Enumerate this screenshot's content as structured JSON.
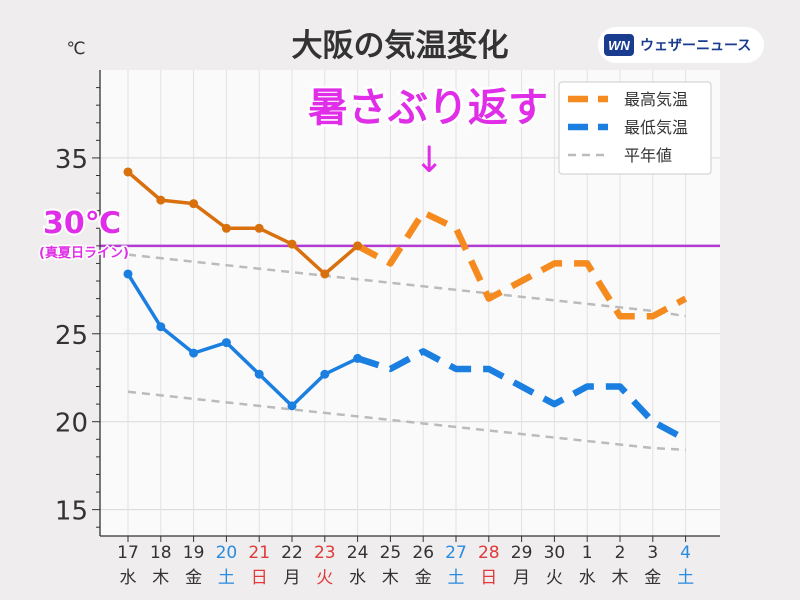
{
  "brand": {
    "mark": "WN",
    "name": "ウェザーニュース",
    "icon": "weathernews-logo"
  },
  "chart_data": {
    "type": "line",
    "title": "大阪の気温変化",
    "unit_label": "℃",
    "ylim": [
      13.5,
      40
    ],
    "yticks": [
      15,
      20,
      25,
      30,
      35
    ],
    "ytick_labels": [
      "15",
      "20",
      "25",
      "",
      "35"
    ],
    "grid": true,
    "legend_position": "top-right",
    "x_days": [
      "17",
      "18",
      "19",
      "20",
      "21",
      "22",
      "23",
      "24",
      "25",
      "26",
      "27",
      "28",
      "29",
      "30",
      "1",
      "2",
      "3",
      "4"
    ],
    "x_weekdays": [
      "水",
      "木",
      "金",
      "土",
      "日",
      "月",
      "火",
      "水",
      "木",
      "金",
      "土",
      "日",
      "月",
      "火",
      "水",
      "木",
      "金",
      "土"
    ],
    "x_day_types": [
      "weekday",
      "weekday",
      "weekday",
      "sat",
      "sun",
      "weekday",
      "holiday",
      "weekday",
      "weekday",
      "weekday",
      "sat",
      "sun",
      "weekday",
      "weekday",
      "weekday",
      "weekday",
      "weekday",
      "sat"
    ],
    "observed_count": 8,
    "series": [
      {
        "name": "最高気温",
        "color": "#f58a1f",
        "observed_color": "#d9700e",
        "values": [
          34.2,
          32.6,
          32.4,
          31.0,
          31.0,
          30.1,
          28.4,
          30.0,
          29.0,
          31.9,
          31.0,
          27.0,
          28.0,
          29.0,
          29.0,
          26.0,
          26.0,
          27.0
        ]
      },
      {
        "name": "最低気温",
        "color": "#1a7fe0",
        "observed_color": "#1a7fe0",
        "values": [
          28.4,
          25.4,
          23.9,
          24.5,
          22.7,
          20.9,
          22.7,
          23.6,
          23.0,
          24.0,
          23.0,
          23.0,
          22.0,
          21.0,
          22.0,
          22.0,
          20.0,
          19.0
        ]
      },
      {
        "name": "平年値",
        "color": "#bbbbbb",
        "segments": [
          {
            "values": [
              29.5,
              29.3,
              29.1,
              28.9,
              28.7,
              28.5,
              28.3,
              28.1,
              27.9,
              27.7,
              27.5,
              27.3,
              27.1,
              26.9,
              26.7,
              26.5,
              26.3,
              26.0
            ]
          },
          {
            "values": [
              21.7,
              21.5,
              21.3,
              21.1,
              20.9,
              20.7,
              20.5,
              20.3,
              20.1,
              19.9,
              19.7,
              19.5,
              19.3,
              19.1,
              18.9,
              18.7,
              18.5,
              18.4
            ]
          }
        ]
      }
    ],
    "reference_line": {
      "value": 30,
      "color": "#b33bd1",
      "label": "30℃",
      "sublabel": "(真夏日ライン)",
      "label_color": "#e02ee8"
    },
    "annotation": {
      "text": "暑さぶり返す",
      "arrow": "↓",
      "color": "#e02ee8",
      "target_index": 9
    }
  }
}
